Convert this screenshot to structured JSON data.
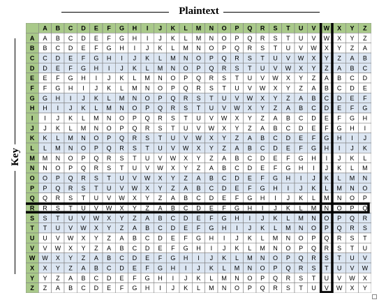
{
  "diagram": {
    "title": "Plaintext",
    "key_label": "Key",
    "alphabet": [
      "A",
      "B",
      "C",
      "D",
      "E",
      "F",
      "G",
      "H",
      "I",
      "J",
      "K",
      "L",
      "M",
      "N",
      "O",
      "P",
      "Q",
      "R",
      "S",
      "T",
      "U",
      "V",
      "W",
      "X",
      "Y",
      "Z"
    ],
    "highlight": {
      "plaintext_column": "W",
      "key_row": "R",
      "result": "N"
    },
    "colors": {
      "header_fill": "#a9c98a",
      "row_band": "#dce6f2",
      "row_plain": "#ffffff",
      "grid_line": "#7f7f7f",
      "highlight_box": "#000000"
    }
  }
}
